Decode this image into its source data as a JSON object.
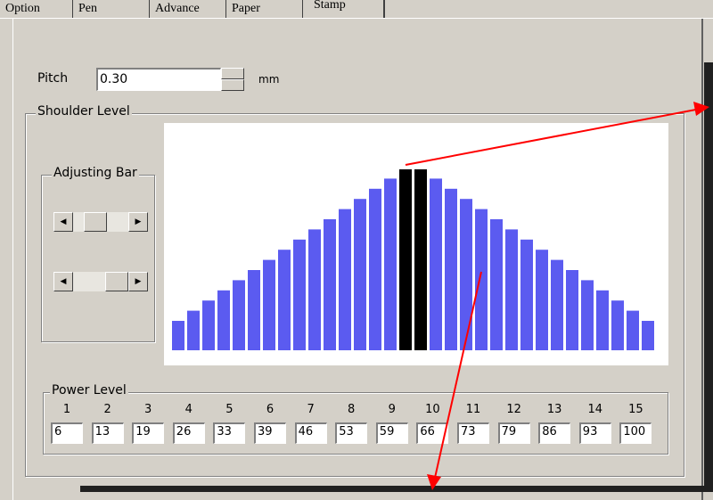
{
  "tabs": [
    "Option",
    "Pen",
    "Advance",
    "Paper",
    "Stamp"
  ],
  "pitch": {
    "label": "Pitch",
    "value": "0.30",
    "unit": "mm"
  },
  "shoulder_level": {
    "title": "Shoulder Level",
    "adjusting_bar": "Adjusting Bar"
  },
  "power_level": {
    "title": "Power Level",
    "indices": [
      "1",
      "2",
      "3",
      "4",
      "5",
      "6",
      "7",
      "8",
      "9",
      "10",
      "11",
      "12",
      "13",
      "14",
      "15"
    ],
    "values": [
      "6",
      "13",
      "19",
      "26",
      "33",
      "39",
      "46",
      "53",
      "59",
      "66",
      "73",
      "79",
      "86",
      "93",
      "100"
    ]
  }
}
